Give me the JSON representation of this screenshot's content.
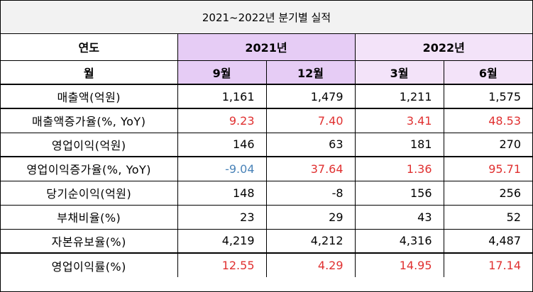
{
  "title": "2021~2022년 분기별 실적",
  "header": {
    "year_label": "연도",
    "year_2021": "2021년",
    "year_2022": "2022년",
    "month_label": "월",
    "months": [
      "9월",
      "12월",
      "3월",
      "6월"
    ]
  },
  "rows": [
    {
      "label": "매출액(억원)",
      "values": [
        "1,161",
        "1,479",
        "1,211",
        "1,575"
      ]
    },
    {
      "label": "매출액증가율(%, YoY)",
      "values": [
        "9.23",
        "7.40",
        "3.41",
        "48.53"
      ]
    },
    {
      "label": "영업이익(억원)",
      "values": [
        "146",
        "63",
        "181",
        "270"
      ]
    },
    {
      "label": "영업이익증가율(%, YoY)",
      "values": [
        "-9.04",
        "37.64",
        "1.36",
        "95.71"
      ]
    },
    {
      "label": "당기순이익(억원)",
      "values": [
        "148",
        "-8",
        "156",
        "256"
      ]
    },
    {
      "label": "부채비율(%)",
      "values": [
        "23",
        "29",
        "43",
        "52"
      ]
    },
    {
      "label": "자본유보율(%)",
      "values": [
        "4,219",
        "4,212",
        "4,316",
        "4,487"
      ]
    },
    {
      "label": "영업이익률(%)",
      "values": [
        "12.55",
        "4.29",
        "14.95",
        "17.14"
      ]
    }
  ],
  "colors": {
    "header_2021_bg": "#e6ccf5",
    "header_2022_bg": "#f3e3f9",
    "title_bg": "#f2f2f2",
    "positive_rate_text": "#e03030",
    "negative_rate_text": "#4a83b8"
  }
}
